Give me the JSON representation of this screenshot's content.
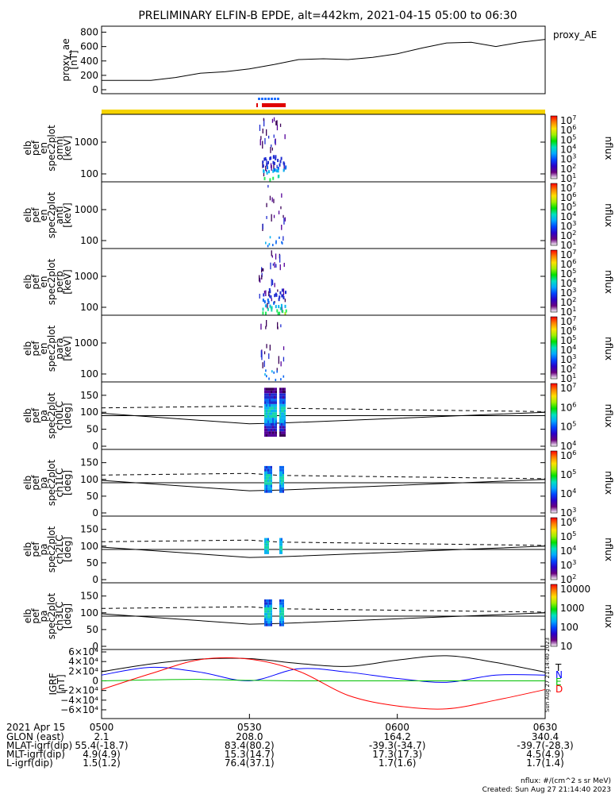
{
  "title": "PRELIMINARY ELFIN-B EPDE, alt=442km, 2021-04-15 05:00 to 06:30",
  "chart_data": [
    {
      "type": "line",
      "name": "proxy_ae",
      "ylabel": [
        "proxy_ae",
        "[nT]"
      ],
      "legend": "proxy_AE",
      "ylim": [
        0,
        850
      ],
      "yticks": [
        "800",
        "600",
        "400",
        "200",
        "0"
      ],
      "x_minutes": [
        0,
        5,
        10,
        15,
        20,
        25,
        30,
        35,
        40,
        45,
        50,
        55,
        60,
        65,
        70,
        75,
        80,
        85,
        90
      ],
      "values": [
        130,
        130,
        130,
        170,
        230,
        250,
        290,
        350,
        420,
        430,
        420,
        450,
        500,
        580,
        650,
        660,
        600,
        660,
        700
      ]
    },
    {
      "type": "heatmap",
      "ylabel": [
        "elb",
        "pef",
        "en",
        "spec2plot",
        "omni",
        "[keV]"
      ],
      "scale": "log",
      "yticks": [
        "1000",
        "100"
      ],
      "colorbar": {
        "label": "nflux",
        "ticks": [
          "10^7",
          "10^6",
          "10^5",
          "10^4",
          "10^3",
          "10^2",
          "10^1"
        ]
      }
    },
    {
      "type": "heatmap",
      "ylabel": [
        "elb",
        "pef",
        "en",
        "spec2plot",
        "anti",
        "[keV]"
      ],
      "scale": "log",
      "yticks": [
        "1000",
        "100"
      ],
      "colorbar": {
        "label": "nflux",
        "ticks": [
          "10^7",
          "10^6",
          "10^5",
          "10^4",
          "10^3",
          "10^2",
          "10^1"
        ]
      }
    },
    {
      "type": "heatmap",
      "ylabel": [
        "elb",
        "pef",
        "en",
        "spec2plot",
        "perp",
        "[keV]"
      ],
      "scale": "log",
      "yticks": [
        "1000",
        "100"
      ],
      "colorbar": {
        "label": "nflux",
        "ticks": [
          "10^7",
          "10^6",
          "10^5",
          "10^4",
          "10^3",
          "10^2",
          "10^1"
        ]
      }
    },
    {
      "type": "heatmap",
      "ylabel": [
        "elb",
        "pef",
        "en",
        "spec2plot",
        "para",
        "[keV]"
      ],
      "scale": "log",
      "yticks": [
        "1000",
        "100"
      ],
      "colorbar": {
        "label": "nflux",
        "ticks": [
          "10^7",
          "10^6",
          "10^5",
          "10^4",
          "10^3",
          "10^2",
          "10^1"
        ]
      }
    },
    {
      "type": "heatmap",
      "ylabel": [
        "elb",
        "pef",
        "pa",
        "spec2plot",
        "ch0LC",
        "[deg]"
      ],
      "ylim": [
        0,
        180
      ],
      "yticks": [
        "150",
        "100",
        "50",
        "0"
      ],
      "colorbar": {
        "label": "nflux",
        "ticks": [
          "10^7",
          "10^6",
          "10^5",
          "10^4"
        ]
      }
    },
    {
      "type": "heatmap",
      "ylabel": [
        "elb",
        "pef",
        "pa",
        "spec2plot",
        "ch1LC",
        "[deg]"
      ],
      "ylim": [
        0,
        180
      ],
      "yticks": [
        "150",
        "100",
        "50",
        "0"
      ],
      "colorbar": {
        "label": "nflux",
        "ticks": [
          "10^6",
          "10^5",
          "10^4",
          "10^3"
        ]
      }
    },
    {
      "type": "heatmap",
      "ylabel": [
        "elb",
        "pef",
        "pa",
        "spec2plot",
        "ch2LC",
        "[deg]"
      ],
      "ylim": [
        0,
        180
      ],
      "yticks": [
        "150",
        "100",
        "50",
        "0"
      ],
      "colorbar": {
        "label": "nflux",
        "ticks": [
          "10^6",
          "10^5",
          "10^4",
          "10^3",
          "10^2"
        ]
      }
    },
    {
      "type": "heatmap",
      "ylabel": [
        "elb",
        "pef",
        "pa",
        "spec2plot",
        "ch3LC",
        "[deg]"
      ],
      "ylim": [
        0,
        180
      ],
      "yticks": [
        "150",
        "100",
        "50",
        "0"
      ],
      "colorbar": {
        "label": "nflux",
        "ticks": [
          "10000",
          "1000",
          "100",
          "10"
        ]
      }
    },
    {
      "type": "line",
      "ylabel": [
        "IGRF",
        "[nT]"
      ],
      "ylim": [
        -65000,
        65000
      ],
      "yticks": [
        "6×10⁴",
        "4×10⁴",
        "2×10⁴",
        "0",
        "−2×10⁴",
        "−4×10⁴",
        "−6×10⁴"
      ],
      "x_minutes": [
        0,
        10,
        20,
        30,
        40,
        50,
        60,
        70,
        80,
        90
      ],
      "series": [
        {
          "name": "T",
          "color": "#000000",
          "values": [
            19000,
            35000,
            45000,
            46000,
            36000,
            30000,
            43000,
            52000,
            38000,
            18000
          ]
        },
        {
          "name": "N",
          "color": "#0000ff",
          "values": [
            12000,
            28000,
            18000,
            0,
            25000,
            18000,
            5000,
            -3000,
            12000,
            12000
          ]
        },
        {
          "name": "E",
          "color": "#00c000",
          "values": [
            0,
            2000,
            3000,
            1000,
            0,
            0,
            0,
            0,
            0,
            0
          ]
        },
        {
          "name": "D",
          "color": "#ff0000",
          "values": [
            -18000,
            15000,
            44000,
            45000,
            20000,
            -30000,
            -52000,
            -58000,
            -40000,
            -18000
          ]
        }
      ]
    }
  ],
  "colorbar_label": "nflux",
  "stamp": "Sun Aug 27 21:14:40 2023",
  "footer": {
    "date": "2021 Apr 15",
    "rows": [
      {
        "label": "GLON (east)",
        "values": [
          "2.1",
          "208.0",
          "164.2",
          "340.4"
        ]
      },
      {
        "label": "MLAT-igrf(dip)",
        "values": [
          "55.4(-18.7)",
          "83.4(80.2)",
          "-39.3(-34.7)",
          "-39.7(-28.3)"
        ]
      },
      {
        "label": "MLT-igrf(dip)",
        "values": [
          "4.9(4.9)",
          "15.3(14.7)",
          "17.3(17.3)",
          "4.5(4.9)"
        ]
      },
      {
        "label": "L-igrf(dip)",
        "values": [
          "1.5(1.2)",
          "76.4(37.1)",
          "1.7(1.6)",
          "1.7(1.4)"
        ]
      }
    ],
    "xticks": [
      "0500",
      "0530",
      "0600",
      "0630"
    ],
    "units_note": "nflux: #/(cm^2 s sr MeV)",
    "created": "Created: Sun Aug 27 21:14:40 2023"
  }
}
